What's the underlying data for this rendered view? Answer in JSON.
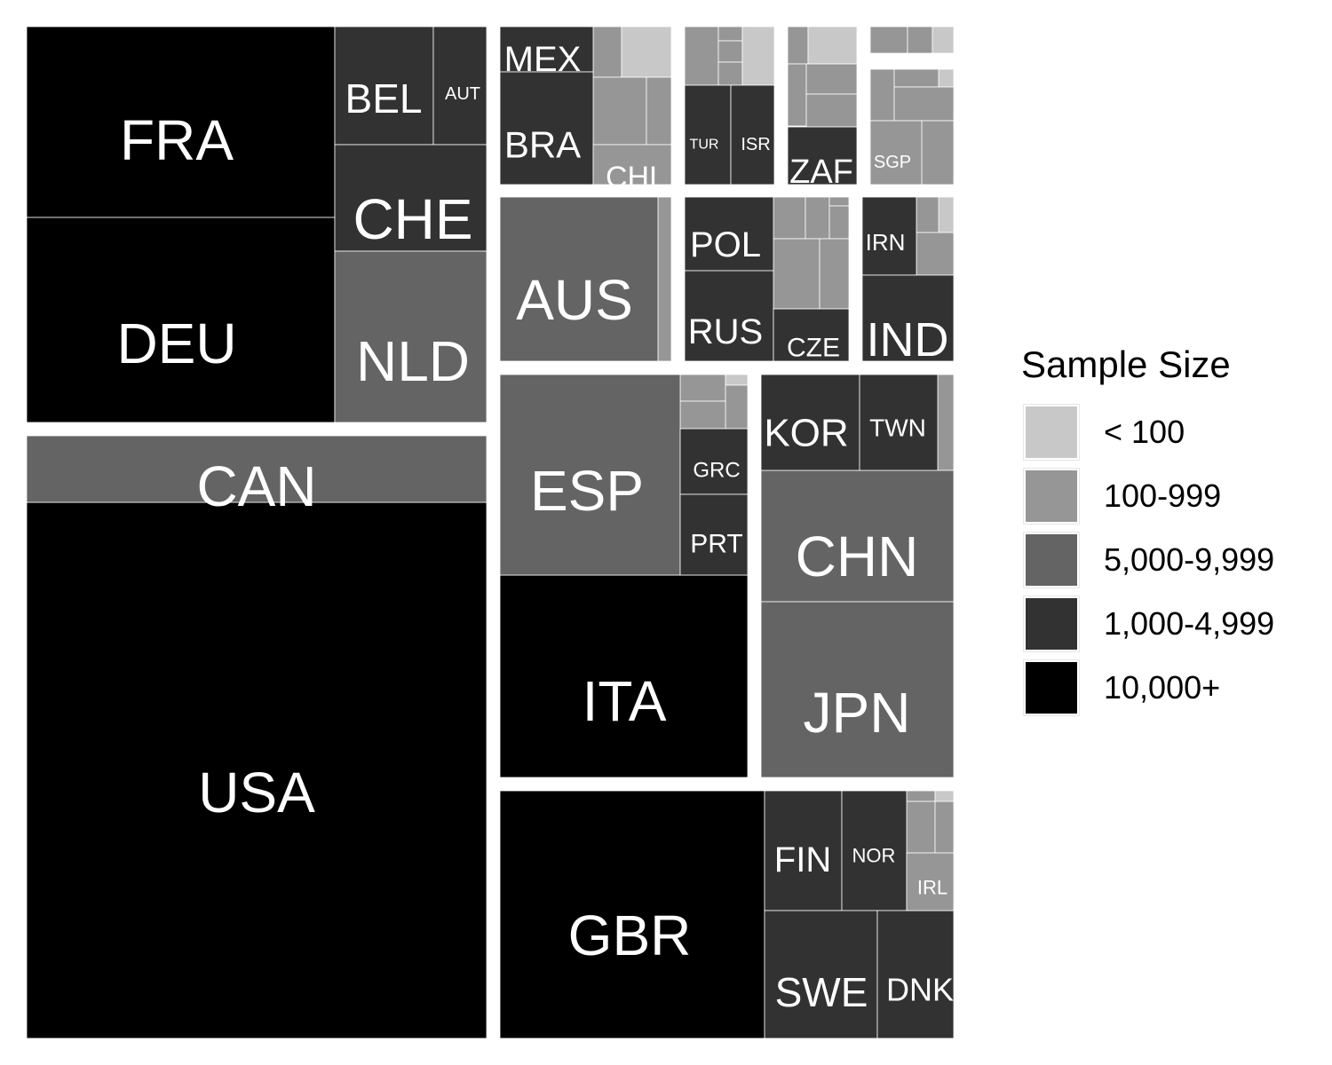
{
  "chart_data": {
    "type": "treemap",
    "legend": {
      "title": "Sample Size",
      "position": "right",
      "items": [
        {
          "label": "< 100",
          "color": "#c8c8c8"
        },
        {
          "label": "100-999",
          "color": "#969696"
        },
        {
          "label": "5,000-9,999",
          "color": "#646464"
        },
        {
          "label": "1,000-4,999",
          "color": "#323232"
        },
        {
          "label": "10,000+",
          "color": "#000000"
        }
      ]
    },
    "countries": [
      {
        "code": "USA",
        "group": "10,000+"
      },
      {
        "code": "FRA",
        "group": "10,000+"
      },
      {
        "code": "DEU",
        "group": "10,000+"
      },
      {
        "code": "CAN",
        "group": "5,000-9,999"
      },
      {
        "code": "BEL",
        "group": "1,000-4,999"
      },
      {
        "code": "AUT",
        "group": "1,000-4,999"
      },
      {
        "code": "CHE",
        "group": "1,000-4,999"
      },
      {
        "code": "NLD",
        "group": "5,000-9,999"
      },
      {
        "code": "GBR",
        "group": "10,000+"
      },
      {
        "code": "ITA",
        "group": "10,000+"
      },
      {
        "code": "ESP",
        "group": "5,000-9,999"
      },
      {
        "code": "CHN",
        "group": "5,000-9,999"
      },
      {
        "code": "JPN",
        "group": "5,000-9,999"
      },
      {
        "code": "AUS",
        "group": "5,000-9,999"
      },
      {
        "code": "KOR",
        "group": "1,000-4,999"
      },
      {
        "code": "TWN",
        "group": "1,000-4,999"
      },
      {
        "code": "GRC",
        "group": "1,000-4,999"
      },
      {
        "code": "PRT",
        "group": "1,000-4,999"
      },
      {
        "code": "FIN",
        "group": "1,000-4,999"
      },
      {
        "code": "NOR",
        "group": "1,000-4,999"
      },
      {
        "code": "SWE",
        "group": "1,000-4,999"
      },
      {
        "code": "DNK",
        "group": "1,000-4,999"
      },
      {
        "code": "IRL",
        "group": "100-999"
      },
      {
        "code": "POL",
        "group": "1,000-4,999"
      },
      {
        "code": "RUS",
        "group": "1,000-4,999"
      },
      {
        "code": "CZE",
        "group": "1,000-4,999"
      },
      {
        "code": "IRN",
        "group": "1,000-4,999"
      },
      {
        "code": "IND",
        "group": "1,000-4,999"
      },
      {
        "code": "MEX",
        "group": "1,000-4,999"
      },
      {
        "code": "BRA",
        "group": "1,000-4,999"
      },
      {
        "code": "CHL",
        "group": "100-999"
      },
      {
        "code": "TUR",
        "group": "1,000-4,999"
      },
      {
        "code": "ISR",
        "group": "1,000-4,999"
      },
      {
        "code": "ZAF",
        "group": "1,000-4,999"
      },
      {
        "code": "SGP",
        "group": "100-999"
      }
    ]
  }
}
